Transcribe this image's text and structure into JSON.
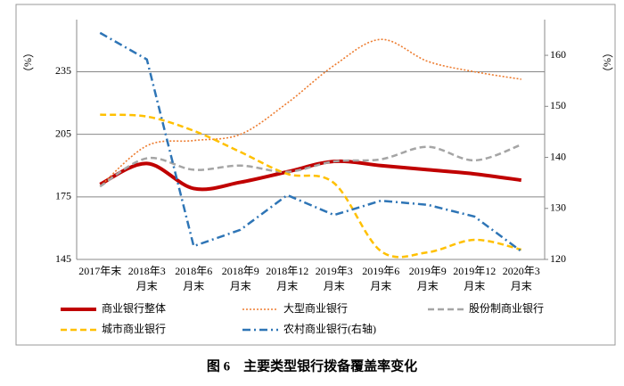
{
  "chart_data": {
    "type": "line",
    "caption": "图 6　主要类型银行拨备覆盖率变化",
    "y_label": "（%）",
    "y2_label": "（%）",
    "categories": [
      [
        "2017年末"
      ],
      [
        "2018年3",
        "月末"
      ],
      [
        "2018年6",
        "月末"
      ],
      [
        "2018年9",
        "月末"
      ],
      [
        "2018年12",
        "月末"
      ],
      [
        "2019年3",
        "月末"
      ],
      [
        "2019年6",
        "月末"
      ],
      [
        "2019年9",
        "月末"
      ],
      [
        "2019年12",
        "月末"
      ],
      [
        "2020年3",
        "月末"
      ]
    ],
    "ylim": [
      145,
      260
    ],
    "yticks": [
      145,
      175,
      205,
      235
    ],
    "y2lim": [
      120,
      167
    ],
    "y2ticks": [
      120,
      130,
      140,
      150,
      160
    ],
    "grid": true,
    "series": [
      {
        "name": "商业银行整体",
        "color": "#c00000",
        "style": "solid",
        "smooth": true,
        "values": [
          181,
          191,
          179,
          182,
          187,
          192,
          190,
          188,
          186,
          183
        ]
      },
      {
        "name": "大型商业银行",
        "color": "#ed7d31",
        "style": "dotted",
        "smooth": true,
        "values": [
          180,
          199.5,
          202,
          205,
          220,
          238,
          250.5,
          240,
          235,
          231.4
        ]
      },
      {
        "name": "股份制商业银行",
        "color": "#a5a5a5",
        "style": "dashed",
        "smooth": true,
        "values": [
          180,
          193.5,
          188,
          190,
          187,
          192,
          193,
          199,
          192.5,
          200
        ]
      },
      {
        "name": "城市商业银行",
        "color": "#ffc000",
        "style": "dashed",
        "smooth": true,
        "values": [
          214.4,
          213.5,
          206.7,
          196.5,
          186,
          181.6,
          149,
          148.4,
          154.4,
          149.7
        ]
      },
      {
        "name": "农村商业银行(右轴)",
        "color": "#2e75b6",
        "style": "dashdot",
        "smooth": false,
        "axis": "y2",
        "values": [
          164.4,
          159.2,
          122.6,
          125.8,
          132.6,
          128.7,
          131.5,
          130.7,
          128.4,
          121.6
        ]
      }
    ]
  }
}
